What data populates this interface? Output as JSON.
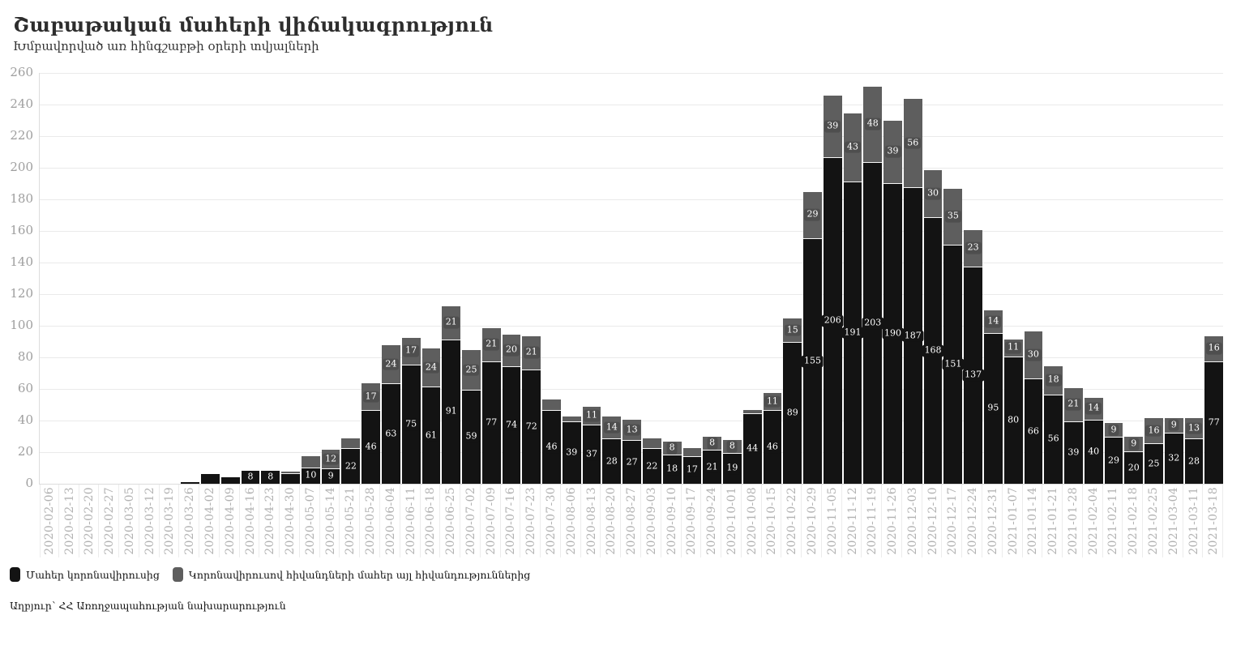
{
  "page": {
    "title": "Շաբաթական մահերի վիճակագրություն",
    "subtitle": "Խմբավորված առ հինգշաբթի օրերի տվյալների",
    "source": "Աղբյուր՝ ՀՀ Առողջապահության նախարարություն"
  },
  "legend": [
    {
      "label": "Մահեր կորոնավիրուսից",
      "color": "#131313"
    },
    {
      "label": "Կորոնավիրուսով հիվանդների մահեր այլ հիվանդություններից",
      "color": "#5e5e5e"
    }
  ],
  "chart_data": {
    "type": "bar",
    "stacked": true,
    "title": "Շաբաթական մահերի վիճակագրություն",
    "subtitle": "Խմբավորված առ հինգշաբթի օրերի տվյալների",
    "xlabel": "",
    "ylabel": "",
    "ylim": [
      0,
      260
    ],
    "ytick_step": 20,
    "grid": true,
    "legend_position": "bottom",
    "bar_label_min_value": 8,
    "categories": [
      "2020-02-06",
      "2020-02-13",
      "2020-02-20",
      "2020-02-27",
      "2020-03-05",
      "2020-03-12",
      "2020-03-19",
      "2020-03-26",
      "2020-04-02",
      "2020-04-09",
      "2020-04-16",
      "2020-04-23",
      "2020-04-30",
      "2020-05-07",
      "2020-05-14",
      "2020-05-21",
      "2020-05-28",
      "2020-06-04",
      "2020-06-11",
      "2020-06-18",
      "2020-06-25",
      "2020-07-02",
      "2020-07-09",
      "2020-07-16",
      "2020-07-23",
      "2020-07-30",
      "2020-08-06",
      "2020-08-13",
      "2020-08-20",
      "2020-08-27",
      "2020-09-03",
      "2020-09-10",
      "2020-09-17",
      "2020-09-24",
      "2020-10-01",
      "2020-10-08",
      "2020-10-15",
      "2020-10-22",
      "2020-10-29",
      "2020-11-05",
      "2020-11-12",
      "2020-11-19",
      "2020-11-26",
      "2020-12-03",
      "2020-12-10",
      "2020-12-17",
      "2020-12-24",
      "2020-12-31",
      "2021-01-07",
      "2021-01-14",
      "2021-01-21",
      "2021-01-28",
      "2021-02-04",
      "2021-02-11",
      "2021-02-18",
      "2021-02-25",
      "2021-03-04",
      "2021-03-11",
      "2021-03-18"
    ],
    "series": [
      {
        "name": "Մահեր կորոնավիրուսից",
        "color": "#131313",
        "label_bg": "#131313",
        "values": [
          0,
          0,
          0,
          0,
          0,
          0,
          0,
          1,
          6,
          4,
          8,
          8,
          6,
          10,
          9,
          22,
          46,
          63,
          75,
          61,
          91,
          59,
          77,
          74,
          72,
          46,
          39,
          37,
          28,
          27,
          22,
          18,
          17,
          21,
          19,
          44,
          46,
          89,
          155,
          206,
          191,
          203,
          190,
          187,
          168,
          151,
          137,
          95,
          80,
          66,
          56,
          39,
          40,
          29,
          20,
          25,
          32,
          28,
          77
        ]
      },
      {
        "name": "Կորոնավիրուսով հիվանդների մահեր այլ հիվանդություններից",
        "color": "#5e5e5e",
        "label_bg": "#4e4e4e",
        "values": [
          0,
          0,
          0,
          0,
          0,
          0,
          0,
          0,
          0,
          0,
          0,
          0,
          1,
          7,
          12,
          6,
          17,
          24,
          17,
          24,
          21,
          25,
          21,
          20,
          21,
          7,
          3,
          11,
          14,
          13,
          6,
          8,
          5,
          8,
          8,
          2,
          11,
          15,
          29,
          39,
          43,
          48,
          39,
          56,
          30,
          35,
          23,
          14,
          11,
          30,
          18,
          21,
          14,
          9,
          9,
          16,
          9,
          13,
          16
        ]
      }
    ]
  }
}
